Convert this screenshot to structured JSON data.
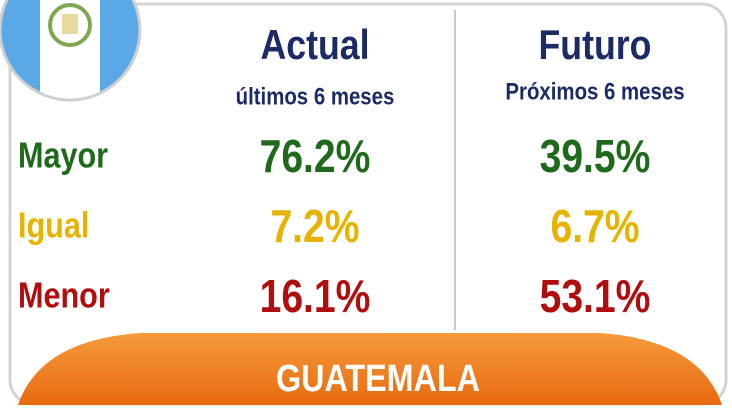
{
  "header": {
    "columns": [
      {
        "title": "Actual",
        "subtitle": "últimos 6 meses"
      },
      {
        "title": "Futuro",
        "subtitle": "Próximos 6 meses"
      }
    ]
  },
  "table": {
    "rows": [
      {
        "label": "Mayor",
        "values": [
          "76.2%",
          "39.5%"
        ]
      },
      {
        "label": "Igual",
        "values": [
          "7.2%",
          "6.7%"
        ]
      },
      {
        "label": "Menor",
        "values": [
          "16.1%",
          "53.1%"
        ]
      }
    ]
  },
  "footer": {
    "title": "GUATEMALA"
  }
}
